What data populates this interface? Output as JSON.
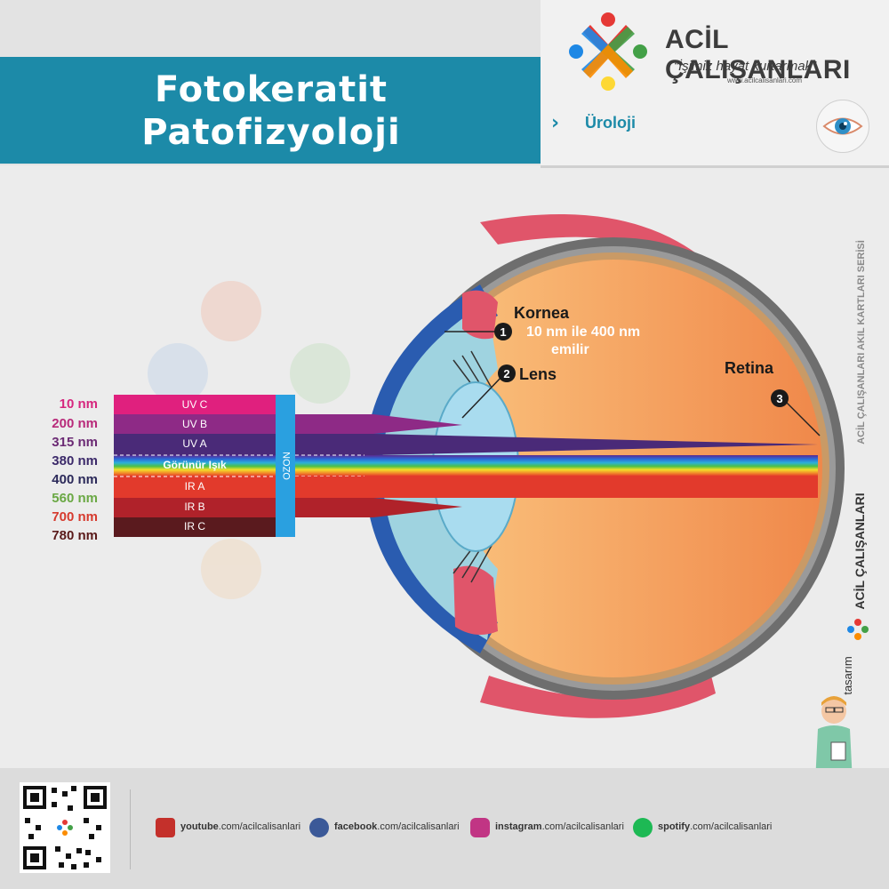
{
  "header": {
    "title_line1": "Fotokeratit",
    "title_line2": "Patofizyoloji",
    "brand": "ACİL ÇALIŞANLARI",
    "slogan": "“İşimiz hayat kurtarmak”",
    "website": "www.acilcalisanlari.com",
    "category": "Üroloji",
    "category_chevron": "›"
  },
  "diagram": {
    "wavelengths": [
      {
        "label": "10 nm",
        "color": "#d6267e"
      },
      {
        "label": "200 nm",
        "color": "#b82a7a"
      },
      {
        "label": "315 nm",
        "color": "#6b2a74"
      },
      {
        "label": "380 nm",
        "color": "#3c2a6a"
      },
      {
        "label": "400 nm",
        "color": "#2c2a5a"
      },
      {
        "label": "560 nm",
        "color": "#6aa844"
      },
      {
        "label": "700 nm",
        "color": "#d63a2e"
      },
      {
        "label": "780 nm",
        "color": "#5a1a1a"
      }
    ],
    "bands": [
      {
        "label": "UV C",
        "color": "#e0207e"
      },
      {
        "label": "UV B",
        "color": "#8e2a86"
      },
      {
        "label": "UV A",
        "color": "#4a2a78"
      },
      {
        "label": "Görünür Işık",
        "color": "spectrum"
      },
      {
        "label": "IR A",
        "color": "#e23a2c"
      },
      {
        "label": "IR B",
        "color": "#b0222a"
      },
      {
        "label": "IR C",
        "color": "#5a1a1e"
      }
    ],
    "ozone_label": "OZON",
    "labels": {
      "kornea": "Kornea",
      "kornea_note_line1": "10 nm ile 400 nm",
      "kornea_note_line2": "emilir",
      "lens": "Lens",
      "retina": "Retina",
      "num1": "1",
      "num2": "2",
      "num3": "3"
    },
    "side_text": "ACİL ÇALIŞANLARI AKIL KARTLARI SERİSİ",
    "design_credit_prefix": "tasarım",
    "design_credit_brand": "ACİL ÇALIŞANLARI"
  },
  "footer": {
    "links": [
      {
        "bold": "youtube",
        "rest": ".com/acilcalisanlari",
        "icon": "youtube-icon",
        "color": "#c4302b"
      },
      {
        "bold": "facebook",
        "rest": ".com/acilcalisanlari",
        "icon": "facebook-icon",
        "color": "#3b5998"
      },
      {
        "bold": "instagram",
        "rest": ".com/acilcalisanlari",
        "icon": "instagram-icon",
        "color": "#c13584"
      },
      {
        "bold": "spotify",
        "rest": ".com/acilcalisanlari",
        "icon": "spotify-icon",
        "color": "#1db954"
      }
    ]
  }
}
